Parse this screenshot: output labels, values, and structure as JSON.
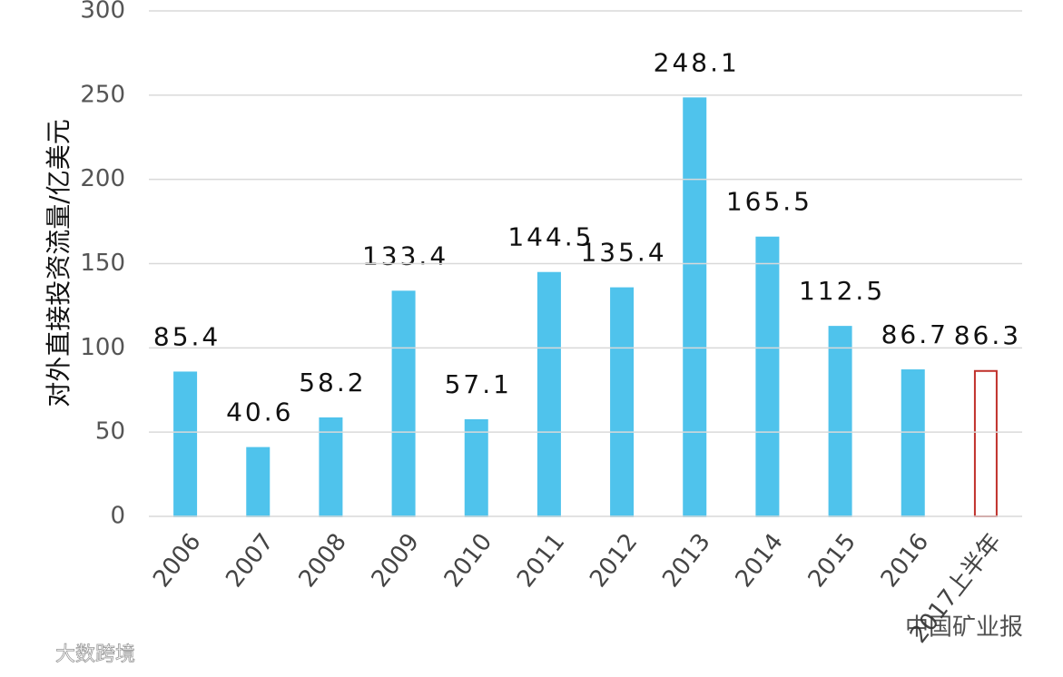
{
  "chart_data": {
    "type": "bar",
    "y_label": "对外直接投资流量/亿美元",
    "categories": [
      "2006",
      "2007",
      "2008",
      "2009",
      "2010",
      "2011",
      "2012",
      "2013",
      "2014",
      "2015",
      "2016",
      "2017上半年"
    ],
    "values": [
      85.4,
      40.6,
      58.2,
      133.4,
      57.1,
      144.5,
      135.4,
      248.1,
      165.5,
      112.5,
      86.7,
      86.3
    ],
    "fills": [
      "#4fc3ec",
      "#4fc3ec",
      "#4fc3ec",
      "#4fc3ec",
      "#4fc3ec",
      "#4fc3ec",
      "#4fc3ec",
      "#4fc3ec",
      "#4fc3ec",
      "#4fc3ec",
      "#4fc3ec",
      "#ffffff"
    ],
    "strokes": [
      "#4fc3ec",
      "#4fc3ec",
      "#4fc3ec",
      "#4fc3ec",
      "#4fc3ec",
      "#4fc3ec",
      "#4fc3ec",
      "#4fc3ec",
      "#4fc3ec",
      "#4fc3ec",
      "#4fc3ec",
      "#c0302a"
    ],
    "ylim": [
      0,
      300
    ],
    "yticks": [
      0,
      50,
      100,
      150,
      200,
      250,
      300
    ],
    "grid": true,
    "watermarks": [
      "中国矿业报",
      "大数跨境"
    ]
  }
}
